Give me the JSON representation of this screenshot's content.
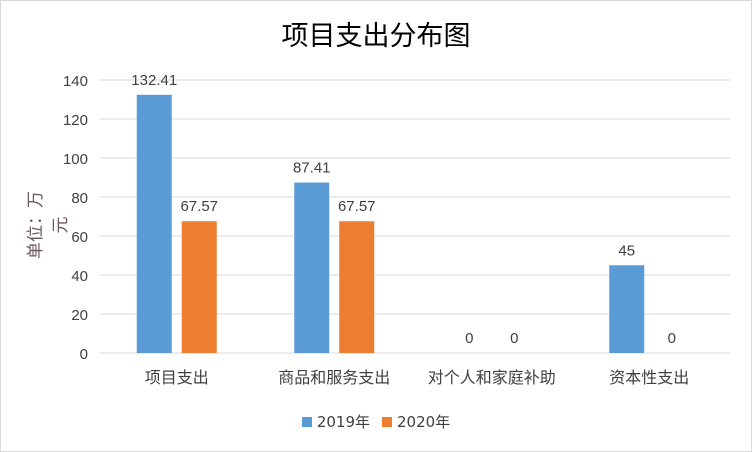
{
  "chart_data": {
    "type": "bar",
    "title": "项目支出分布图",
    "ylabel": "单位：万元",
    "xlabel": "",
    "categories": [
      "项目支出",
      "商品和服务支出",
      "对个人和家庭补助",
      "资本性支出"
    ],
    "series": [
      {
        "name": "2019年",
        "color": "#5b9bd5",
        "values": [
          132.41,
          87.41,
          0,
          45
        ]
      },
      {
        "name": "2020年",
        "color": "#ed7d31",
        "values": [
          67.57,
          67.57,
          0,
          0
        ]
      }
    ],
    "ylim": [
      0,
      140
    ],
    "yticks": [
      0,
      20,
      40,
      60,
      80,
      100,
      120,
      140
    ],
    "grid": true,
    "legend": "bottom",
    "data_labels": true
  }
}
